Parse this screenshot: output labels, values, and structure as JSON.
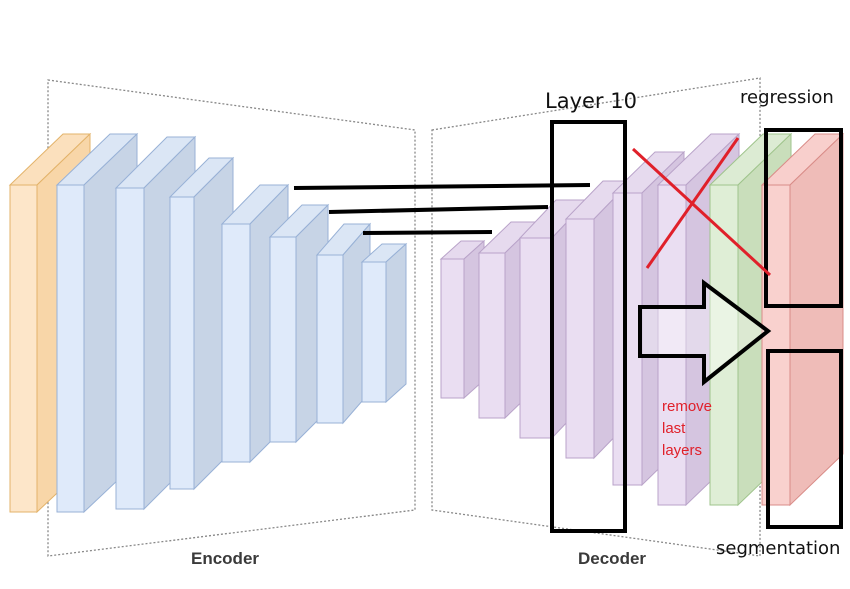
{
  "labels": {
    "encoder": "Encoder",
    "decoder": "Decoder",
    "layer10": "Layer 10",
    "regression": "regression",
    "segmentation": "segmentation",
    "remove_lines": [
      "remove",
      "last",
      "layers"
    ]
  },
  "colors": {
    "input_layer": "#fde3c4",
    "encoder_layer": "#d9e6f6",
    "decoder_layer": "#e5d7ec",
    "green_layer": "#d8e9cf",
    "red_layer": "#f7c9c6",
    "annotation_black": "#000000",
    "annotation_red": "#e0202a"
  }
}
